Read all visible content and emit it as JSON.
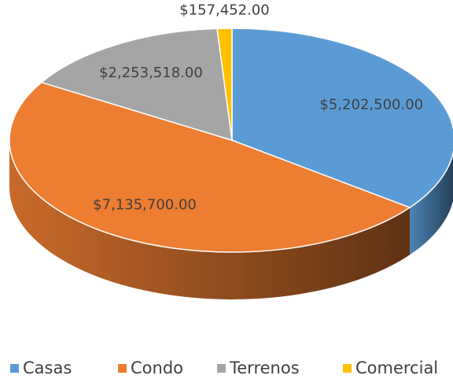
{
  "chart_data": {
    "type": "pie",
    "categories": [
      "Casas",
      "Condo",
      "Terrenos",
      "Comercial"
    ],
    "values": [
      5202500,
      7135700,
      2253518,
      157452
    ],
    "value_labels": [
      "$5,202,500.00",
      "$7,135,700.00",
      "$2,253,518.00",
      "$157,452.00"
    ],
    "colors": [
      "#5b9bd5",
      "#ed7d31",
      "#a5a5a5",
      "#ffc000"
    ],
    "legend": "bottom"
  }
}
